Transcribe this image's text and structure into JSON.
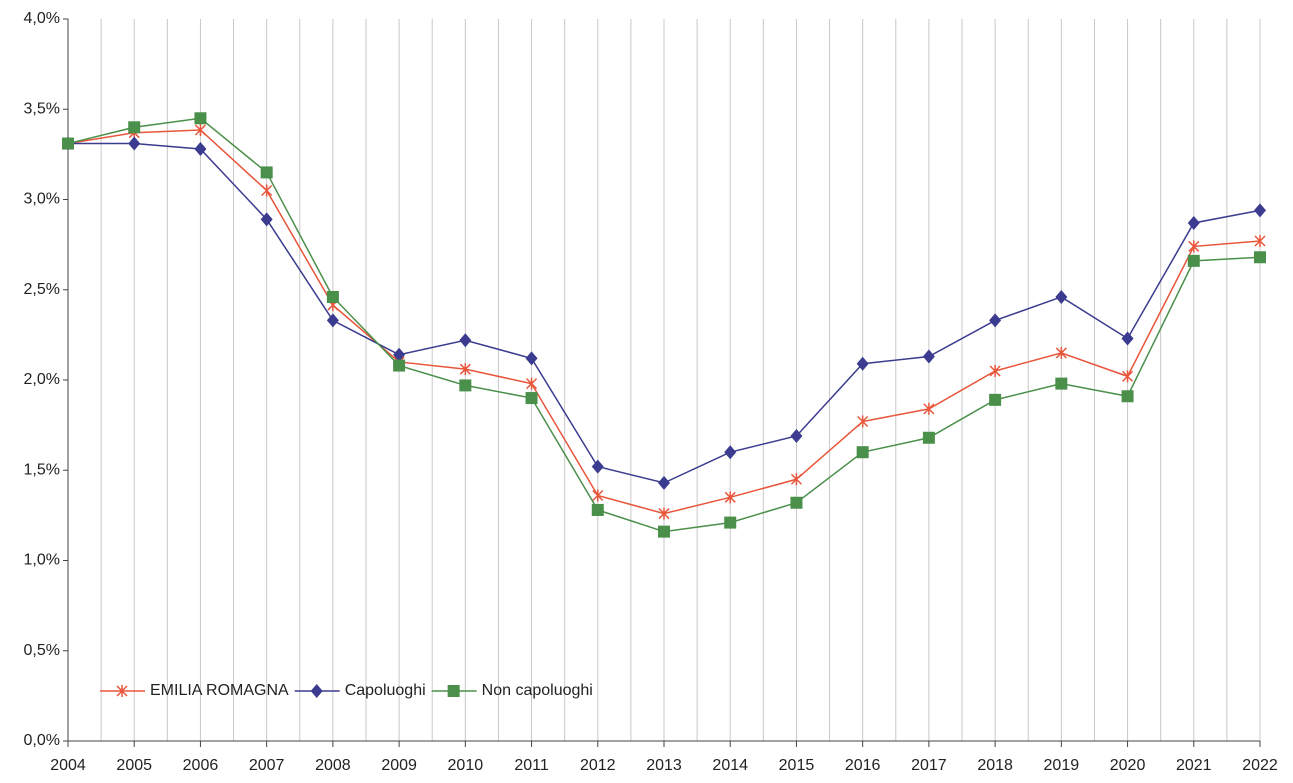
{
  "chart_data": {
    "type": "line",
    "categories": [
      "2004",
      "2005",
      "2006",
      "2007",
      "2008",
      "2009",
      "2010",
      "2011",
      "2012",
      "2013",
      "2014",
      "2015",
      "2016",
      "2017",
      "2018",
      "2019",
      "2020",
      "2021",
      "2022"
    ],
    "series": [
      {
        "name": "EMILIA ROMAGNA",
        "color": "#e8553a",
        "marker": "star",
        "values": [
          3.31,
          3.37,
          3.385,
          3.05,
          2.415,
          2.1,
          2.06,
          1.98,
          1.36,
          1.26,
          1.35,
          1.45,
          1.77,
          1.84,
          2.05,
          2.15,
          2.02,
          2.74,
          2.77
        ]
      },
      {
        "name": "Capoluoghi",
        "color": "#3b3b8f",
        "marker": "diamond",
        "values": [
          3.31,
          3.31,
          3.28,
          2.89,
          2.33,
          2.14,
          2.22,
          2.12,
          1.52,
          1.43,
          1.6,
          1.69,
          2.09,
          2.13,
          2.33,
          2.46,
          2.23,
          2.87,
          2.94
        ]
      },
      {
        "name": "Non capoluoghi",
        "color": "#4a8f4a",
        "marker": "square",
        "values": [
          3.31,
          3.4,
          3.45,
          3.15,
          2.46,
          2.08,
          1.97,
          1.9,
          1.28,
          1.16,
          1.21,
          1.32,
          1.6,
          1.68,
          1.89,
          1.98,
          1.91,
          2.66,
          2.68
        ]
      }
    ],
    "ylim": [
      0,
      4
    ],
    "yticks": [
      {
        "value": 0,
        "label": "0,0%"
      },
      {
        "value": 0.5,
        "label": "0,5%"
      },
      {
        "value": 1,
        "label": "1,0%"
      },
      {
        "value": 1.5,
        "label": "1,5%"
      },
      {
        "value": 2,
        "label": "2,0%"
      },
      {
        "value": 2.5,
        "label": "2,5%"
      },
      {
        "value": 3,
        "label": "3,0%"
      },
      {
        "value": 3.5,
        "label": "3,5%"
      },
      {
        "value": 4,
        "label": "4,0%"
      }
    ],
    "grid": true,
    "legend": "lower left"
  }
}
